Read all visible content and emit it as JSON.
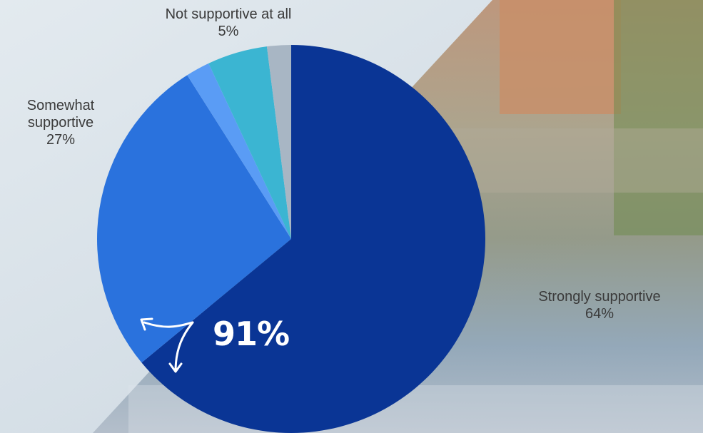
{
  "chart_data": {
    "type": "pie",
    "slices": [
      {
        "label_lines": [
          "Strongly supportive"
        ],
        "value_text": "64%",
        "value": 64,
        "color": "#0a3595"
      },
      {
        "label_lines": [
          "Somewhat",
          "supportive"
        ],
        "value_text": "27%",
        "value": 27,
        "color": "#2a72dd"
      },
      {
        "label_lines": [],
        "value_text": "",
        "value": 2,
        "color": "#5a9cf5"
      },
      {
        "label_lines": [
          "Not supportive at all"
        ],
        "value_text": "5%",
        "value": 5,
        "color": "#3bb5d2"
      },
      {
        "label_lines": [],
        "value_text": "",
        "value": 2,
        "color": "#a8b6c4"
      }
    ],
    "callout": "91%",
    "start_angle_deg": 0,
    "direction": "clockwise"
  }
}
